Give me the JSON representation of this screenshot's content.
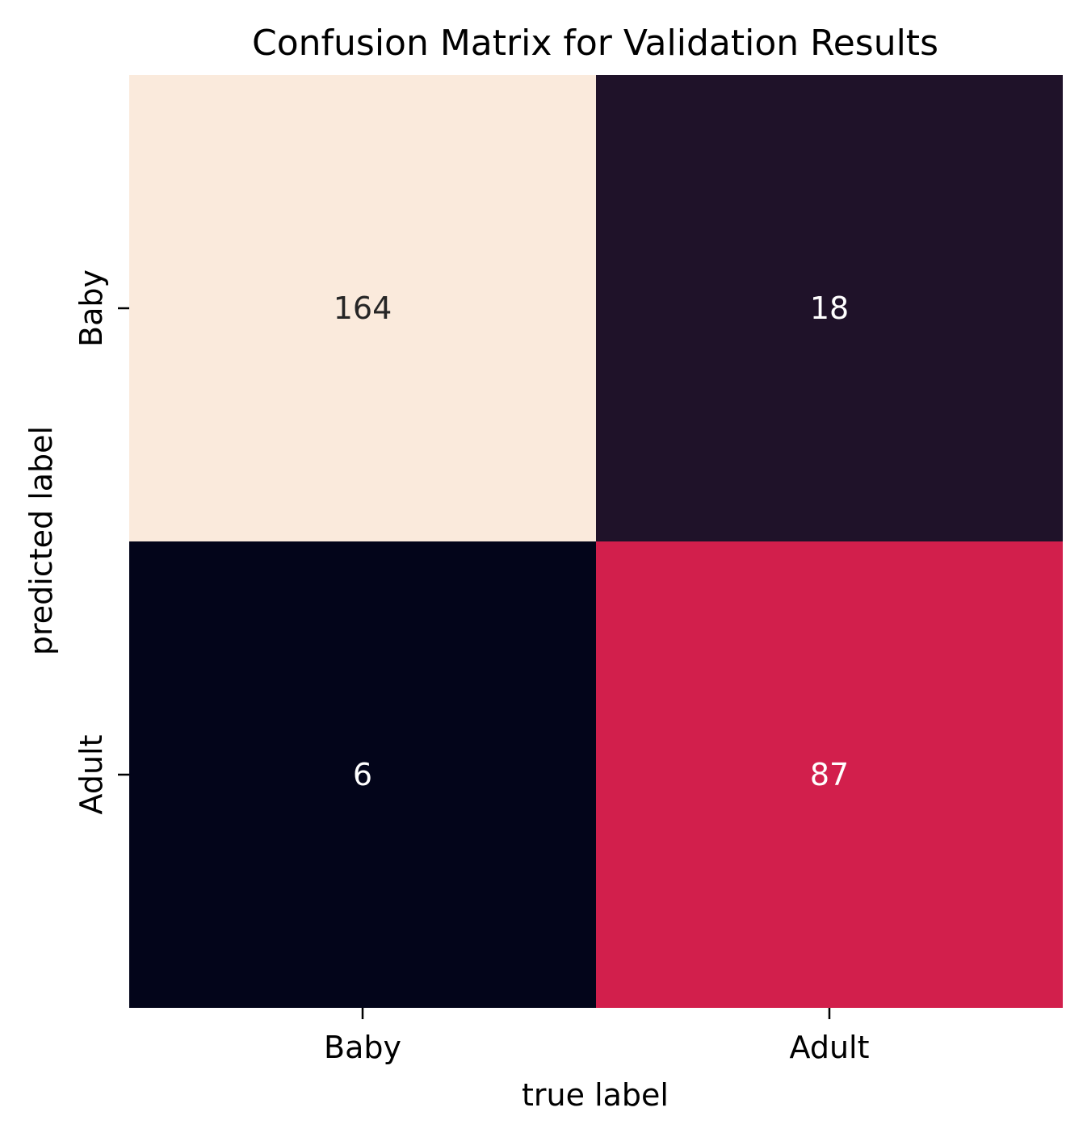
{
  "chart_data": {
    "type": "heatmap",
    "title": "Confusion Matrix for Validation Results",
    "xlabel": "true label",
    "ylabel": "predicted label",
    "x_categories": [
      "Baby",
      "Adult"
    ],
    "y_categories": [
      "Baby",
      "Adult"
    ],
    "values": [
      [
        164,
        18
      ],
      [
        6,
        87
      ]
    ],
    "colorbar": false,
    "grid": false,
    "colors": {
      "cells": [
        [
          "#faeadc",
          "#1f1229"
        ],
        [
          "#03051a",
          "#d21f4c"
        ]
      ],
      "text": [
        [
          "#262626",
          "#ffffff"
        ],
        [
          "#ffffff",
          "#ffffff"
        ]
      ]
    }
  }
}
